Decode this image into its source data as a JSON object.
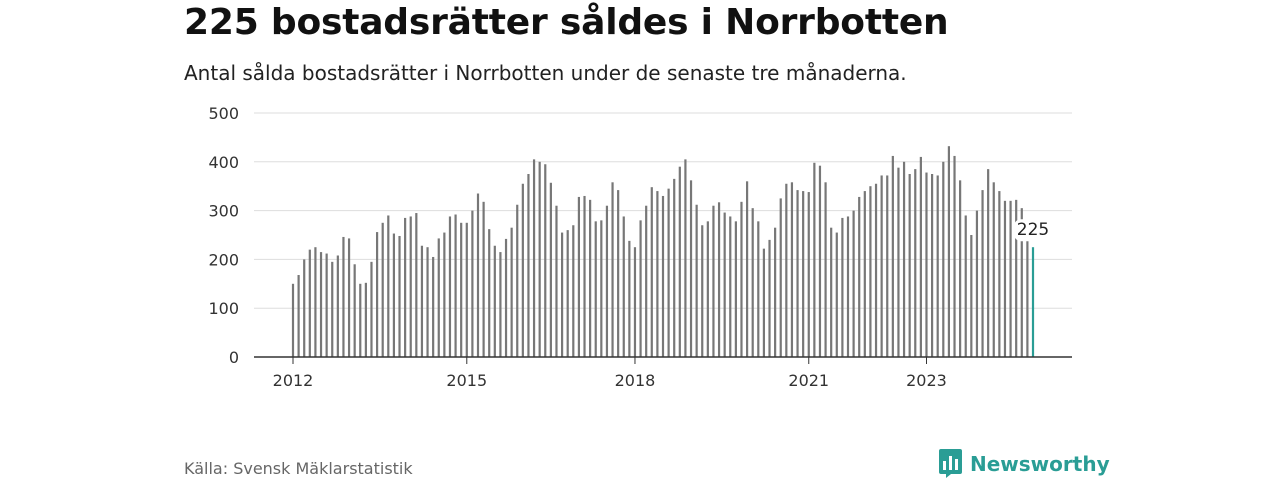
{
  "title": "225 bostadsrätter såldes i Norrbotten",
  "subtitle": "Antal sålda bostadsrätter i Norrbotten under de senaste tre månaderna.",
  "source": "Källa: Svensk Mäklarstatistik",
  "brand": {
    "name": "Newsworthy",
    "icon": "newsworthy-logo-icon"
  },
  "colors": {
    "bar": "#777777",
    "highlight": "#2a9d95",
    "grid": "#dddddd",
    "axis": "#333333"
  },
  "chart_data": {
    "type": "bar",
    "title": "225 bostadsrätter såldes i Norrbotten",
    "xlabel": "",
    "ylabel": "",
    "ylim": [
      0,
      500
    ],
    "yticks": [
      "0",
      "100",
      "200",
      "300",
      "400",
      "500"
    ],
    "xticks": [
      "2012",
      "2015",
      "2018",
      "2021",
      "2023"
    ],
    "xtick_index": [
      0,
      31,
      61,
      92,
      113
    ],
    "highlight_label": "225",
    "grid": true,
    "series": [
      {
        "name": "Antal sålda bostadsrätter (rullande tre månader)",
        "values": [
          150,
          168,
          200,
          220,
          225,
          215,
          212,
          195,
          208,
          246,
          243,
          190,
          150,
          152,
          195,
          256,
          275,
          290,
          253,
          248,
          285,
          288,
          295,
          228,
          225,
          205,
          243,
          255,
          288,
          292,
          275,
          275,
          300,
          335,
          318,
          262,
          228,
          215,
          242,
          265,
          312,
          355,
          375,
          405,
          400,
          395,
          357,
          310,
          255,
          260,
          270,
          328,
          330,
          322,
          278,
          280,
          310,
          358,
          342,
          288,
          238,
          225,
          280,
          310,
          348,
          340,
          330,
          345,
          365,
          390,
          405,
          362,
          312,
          270,
          278,
          310,
          317,
          296,
          288,
          278,
          318,
          360,
          305,
          278,
          222,
          240,
          265,
          325,
          355,
          358,
          342,
          340,
          338,
          398,
          392,
          358,
          265,
          255,
          285,
          288,
          300,
          328,
          340,
          350,
          355,
          372,
          372,
          412,
          388,
          400,
          375,
          385,
          410,
          378,
          375,
          372,
          400,
          432,
          412,
          362,
          290,
          250,
          300,
          342,
          385,
          358,
          340,
          320,
          320,
          322,
          305,
          262,
          225
        ]
      }
    ]
  }
}
